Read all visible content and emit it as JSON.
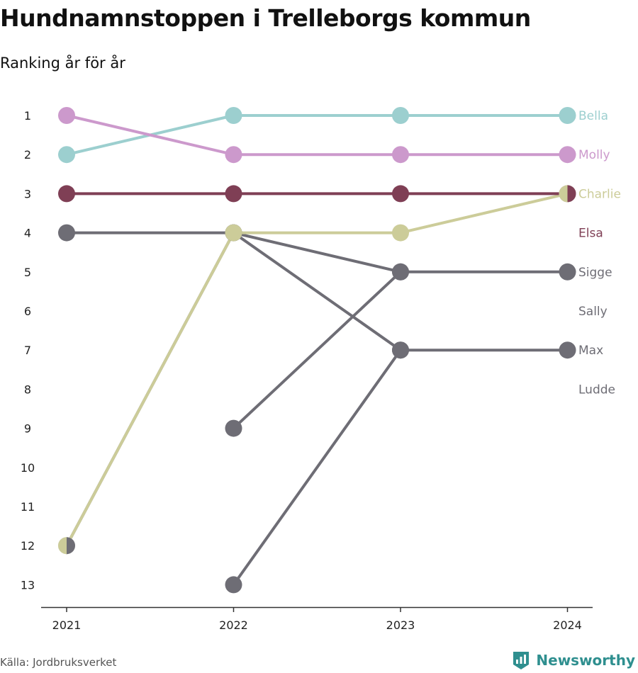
{
  "title": "Hundnamnstoppen i Trelleborgs kommun",
  "subtitle": "Ranking år för år",
  "source": "Källa: Jordbruksverket",
  "brand": {
    "name": "Newsworthy",
    "color": "#2f8f8f"
  },
  "chart_data": {
    "type": "line",
    "x": [
      "2021",
      "2022",
      "2023",
      "2024"
    ],
    "y_ticks": [
      1,
      2,
      3,
      4,
      5,
      6,
      7,
      8,
      9,
      10,
      11,
      12,
      13
    ],
    "ylim": [
      1,
      13
    ],
    "y_inverted": true,
    "series": [
      {
        "name": "Bella",
        "color": "#9ccfcf",
        "values": [
          2,
          1,
          1,
          1
        ]
      },
      {
        "name": "Molly",
        "color": "#cc99cc",
        "values": [
          1,
          2,
          2,
          2
        ]
      },
      {
        "name": "Charlie",
        "color": "#cccc99",
        "values": [
          12,
          4,
          4,
          3
        ]
      },
      {
        "name": "Elsa",
        "color": "#7f3f55",
        "values": [
          3,
          3,
          3,
          3
        ]
      },
      {
        "name": "Sigge",
        "color": "#6e6d75",
        "values": [
          null,
          9,
          5,
          5
        ]
      },
      {
        "name": "Sally",
        "color": "#6e6d75",
        "values": [
          4,
          4,
          7,
          null
        ]
      },
      {
        "name": "Max",
        "color": "#6e6d75",
        "values": [
          null,
          13,
          7,
          7
        ]
      },
      {
        "name": "Ludde",
        "color": "#6e6d75",
        "values": [
          12,
          4,
          5,
          null
        ]
      }
    ],
    "end_labels": [
      {
        "text": "Bella",
        "rank": 1,
        "color": "#9ccfcf"
      },
      {
        "text": "Molly",
        "rank": 2,
        "color": "#cc99cc"
      },
      {
        "text": "Charlie",
        "rank": 3,
        "color": "#cccc99"
      },
      {
        "text": "Elsa",
        "rank": 4,
        "color": "#7f3f55"
      },
      {
        "text": "Sigge",
        "rank": 5,
        "color": "#6e6d75"
      },
      {
        "text": "Sally",
        "rank": 6,
        "color": "#6e6d75"
      },
      {
        "text": "Max",
        "rank": 7,
        "color": "#6e6d75"
      },
      {
        "text": "Ludde",
        "rank": 8,
        "color": "#6e6d75"
      }
    ],
    "split_markers": [
      {
        "x": "2024",
        "rank": 3,
        "colors": [
          "#cccc99",
          "#7f3f55"
        ]
      },
      {
        "x": "2021",
        "rank": 12,
        "colors": [
          "#cccc99",
          "#6e6d75"
        ]
      }
    ]
  }
}
